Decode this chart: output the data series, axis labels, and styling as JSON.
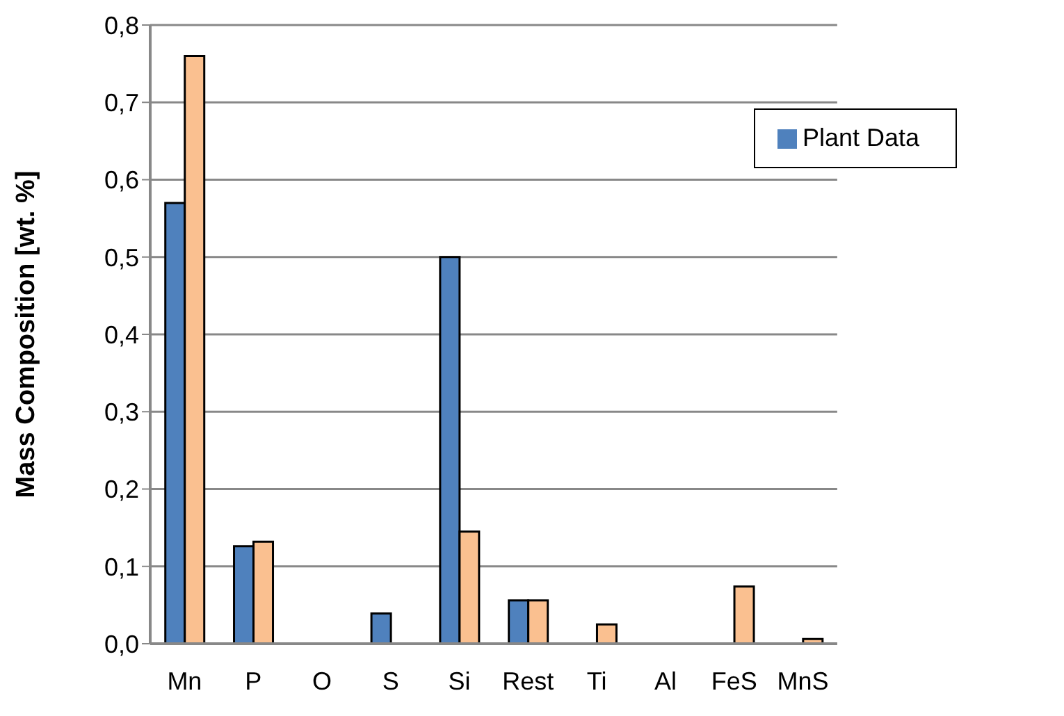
{
  "chart_data": {
    "type": "bar",
    "ylabel": "Mass Composition [wt. %]",
    "categories": [
      "Mn",
      "P",
      "O",
      "S",
      "Si",
      "Rest",
      "Ti",
      "Al",
      "FeS",
      "MnS"
    ],
    "series": [
      {
        "name": "Plant Data",
        "color": "#4f81bd",
        "values": [
          0.57,
          0.126,
          0,
          0.039,
          0.5,
          0.056,
          0,
          0,
          0,
          0
        ]
      },
      {
        "color": "#fac090",
        "values": [
          0.76,
          0.132,
          null,
          null,
          0.145,
          0.056,
          0.025,
          null,
          0.074,
          0.006
        ]
      }
    ],
    "ylim": [
      0,
      0.8
    ],
    "yticks": [
      {
        "value": 0,
        "label": "0,0"
      },
      {
        "value": 0.1,
        "label": "0,1"
      },
      {
        "value": 0.2,
        "label": "0,2"
      },
      {
        "value": 0.3,
        "label": "0,3"
      },
      {
        "value": 0.4,
        "label": "0,4"
      },
      {
        "value": 0.5,
        "label": "0,5"
      },
      {
        "value": 0.6,
        "label": "0,6"
      },
      {
        "value": 0.7,
        "label": "0,7"
      },
      {
        "value": 0.8,
        "label": "0,8"
      }
    ],
    "grid": "y",
    "legend": "top right"
  }
}
